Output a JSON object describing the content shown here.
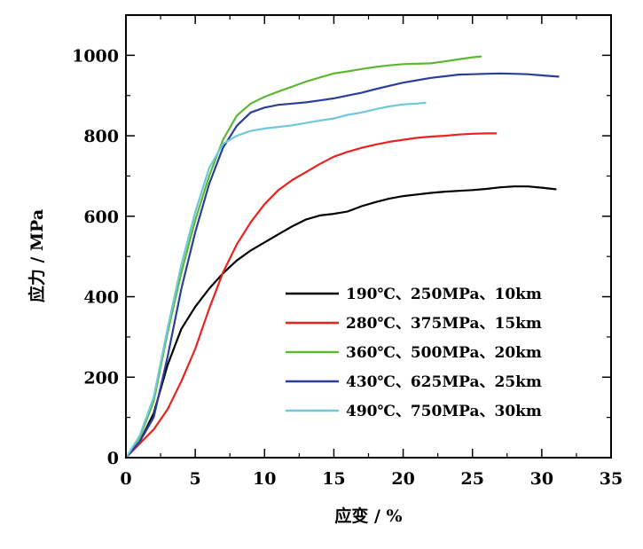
{
  "chart_data": {
    "type": "line",
    "xlabel": "应变 / %",
    "ylabel": "应力 / MPa",
    "xlim": [
      0,
      35
    ],
    "ylim": [
      0,
      1100
    ],
    "xticks": [
      0,
      5,
      10,
      15,
      20,
      25,
      30,
      35
    ],
    "yticks": [
      0,
      200,
      400,
      600,
      800,
      1000
    ],
    "grid": false,
    "legend_position": "lower-right",
    "series": [
      {
        "name": "190℃、250MPa、10km",
        "color": "#000000",
        "points": [
          [
            0,
            0
          ],
          [
            1,
            40
          ],
          [
            2,
            110
          ],
          [
            3,
            230
          ],
          [
            4,
            320
          ],
          [
            5,
            375
          ],
          [
            6,
            420
          ],
          [
            7,
            458
          ],
          [
            8,
            490
          ],
          [
            9,
            515
          ],
          [
            10,
            535
          ],
          [
            11,
            555
          ],
          [
            12,
            575
          ],
          [
            13,
            592
          ],
          [
            14,
            602
          ],
          [
            15,
            606
          ],
          [
            16,
            612
          ],
          [
            17,
            625
          ],
          [
            18,
            635
          ],
          [
            19,
            644
          ],
          [
            20,
            650
          ],
          [
            21,
            654
          ],
          [
            22,
            658
          ],
          [
            23,
            661
          ],
          [
            24,
            663
          ],
          [
            25,
            665
          ],
          [
            26,
            668
          ],
          [
            27,
            672
          ],
          [
            28,
            674
          ],
          [
            29,
            674
          ],
          [
            30,
            671
          ],
          [
            31,
            667
          ]
        ]
      },
      {
        "name": "280℃、375MPa、15km",
        "color": "#e8231f",
        "points": [
          [
            0,
            0
          ],
          [
            1,
            35
          ],
          [
            2,
            70
          ],
          [
            3,
            120
          ],
          [
            4,
            190
          ],
          [
            5,
            270
          ],
          [
            6,
            370
          ],
          [
            7,
            460
          ],
          [
            8,
            530
          ],
          [
            9,
            585
          ],
          [
            10,
            630
          ],
          [
            11,
            665
          ],
          [
            12,
            690
          ],
          [
            13,
            710
          ],
          [
            14,
            730
          ],
          [
            15,
            748
          ],
          [
            16,
            760
          ],
          [
            17,
            770
          ],
          [
            18,
            778
          ],
          [
            19,
            785
          ],
          [
            20,
            790
          ],
          [
            21,
            795
          ],
          [
            22,
            798
          ],
          [
            23,
            800
          ],
          [
            24,
            803
          ],
          [
            25,
            805
          ],
          [
            26,
            806
          ],
          [
            26.7,
            806
          ]
        ]
      },
      {
        "name": "360℃、500MPa、20km",
        "color": "#5cb833",
        "points": [
          [
            0,
            0
          ],
          [
            1,
            50
          ],
          [
            2,
            140
          ],
          [
            3,
            310
          ],
          [
            4,
            460
          ],
          [
            5,
            590
          ],
          [
            6,
            700
          ],
          [
            7,
            790
          ],
          [
            8,
            850
          ],
          [
            9,
            880
          ],
          [
            10,
            897
          ],
          [
            11,
            910
          ],
          [
            12,
            922
          ],
          [
            13,
            935
          ],
          [
            14,
            945
          ],
          [
            15,
            955
          ],
          [
            16,
            960
          ],
          [
            17,
            966
          ],
          [
            18,
            971
          ],
          [
            19,
            975
          ],
          [
            20,
            978
          ],
          [
            21,
            979
          ],
          [
            22,
            980
          ],
          [
            23,
            985
          ],
          [
            24,
            990
          ],
          [
            25,
            995
          ],
          [
            25.6,
            997
          ]
        ]
      },
      {
        "name": "430℃、625MPa、25km",
        "color": "#2a3f9c",
        "points": [
          [
            0,
            0
          ],
          [
            1,
            40
          ],
          [
            2,
            100
          ],
          [
            3,
            250
          ],
          [
            4,
            420
          ],
          [
            5,
            560
          ],
          [
            6,
            680
          ],
          [
            7,
            770
          ],
          [
            8,
            825
          ],
          [
            9,
            858
          ],
          [
            10,
            870
          ],
          [
            11,
            877
          ],
          [
            12,
            880
          ],
          [
            13,
            883
          ],
          [
            14,
            888
          ],
          [
            15,
            893
          ],
          [
            16,
            900
          ],
          [
            17,
            907
          ],
          [
            18,
            916
          ],
          [
            19,
            924
          ],
          [
            20,
            932
          ],
          [
            21,
            938
          ],
          [
            22,
            944
          ],
          [
            23,
            948
          ],
          [
            24,
            952
          ],
          [
            25,
            953
          ],
          [
            26,
            954
          ],
          [
            27,
            955
          ],
          [
            28,
            954
          ],
          [
            29,
            953
          ],
          [
            30,
            950
          ],
          [
            31.2,
            947
          ]
        ]
      },
      {
        "name": "490℃、750MPa、30km",
        "color": "#6fc8d8",
        "points": [
          [
            0,
            0
          ],
          [
            1,
            55
          ],
          [
            2,
            150
          ],
          [
            3,
            320
          ],
          [
            4,
            480
          ],
          [
            5,
            610
          ],
          [
            6,
            720
          ],
          [
            7,
            780
          ],
          [
            8,
            800
          ],
          [
            9,
            812
          ],
          [
            10,
            818
          ],
          [
            11,
            822
          ],
          [
            12,
            826
          ],
          [
            13,
            832
          ],
          [
            14,
            838
          ],
          [
            15,
            843
          ],
          [
            16,
            852
          ],
          [
            17,
            858
          ],
          [
            18,
            866
          ],
          [
            19,
            873
          ],
          [
            20,
            878
          ],
          [
            21,
            880
          ],
          [
            21.6,
            882
          ]
        ]
      }
    ]
  }
}
